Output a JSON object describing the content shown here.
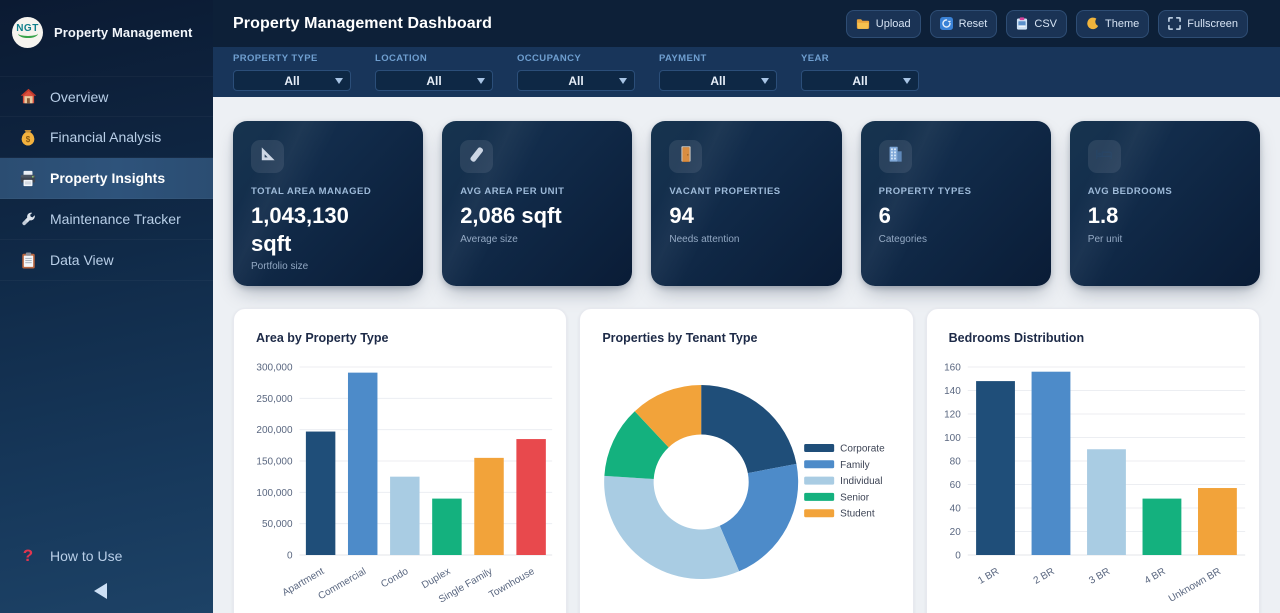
{
  "sidebar": {
    "brand": {
      "logo_text": "NGT",
      "title": "Property Management"
    },
    "items": [
      {
        "label": "Overview",
        "icon": "house-icon",
        "active": false
      },
      {
        "label": "Financial Analysis",
        "icon": "money-bag-icon",
        "active": false
      },
      {
        "label": "Property Insights",
        "icon": "printer-icon",
        "active": true
      },
      {
        "label": "Maintenance Tracker",
        "icon": "wrench-icon",
        "active": false
      },
      {
        "label": "Data View",
        "icon": "clipboard-icon",
        "active": false
      }
    ],
    "help": {
      "label": "How to Use",
      "icon": "question-mark-icon"
    },
    "collapse_icon": "collapse-left-icon"
  },
  "header": {
    "title": "Property Management Dashboard",
    "buttons": [
      {
        "label": "Upload",
        "icon": "folder-icon"
      },
      {
        "label": "Reset",
        "icon": "reset-icon"
      },
      {
        "label": "CSV",
        "icon": "clipboard-export-icon"
      },
      {
        "label": "Theme",
        "icon": "moon-icon"
      },
      {
        "label": "Fullscreen",
        "icon": "fullscreen-icon"
      }
    ]
  },
  "filters": [
    {
      "label": "PROPERTY TYPE",
      "value": "All"
    },
    {
      "label": "LOCATION",
      "value": "All"
    },
    {
      "label": "OCCUPANCY",
      "value": "All"
    },
    {
      "label": "PAYMENT",
      "value": "All"
    },
    {
      "label": "YEAR",
      "value": "All"
    }
  ],
  "kpis": [
    {
      "label": "TOTAL AREA MANAGED",
      "value": "1,043,130 sqft",
      "sub": "Portfolio size",
      "icon": "triangle-ruler-icon"
    },
    {
      "label": "AVG AREA PER UNIT",
      "value": "2,086 sqft",
      "sub": "Average size",
      "icon": "ruler-icon"
    },
    {
      "label": "VACANT PROPERTIES",
      "value": "94",
      "sub": "Needs attention",
      "icon": "door-icon"
    },
    {
      "label": "PROPERTY TYPES",
      "value": "6",
      "sub": "Categories",
      "icon": "building-icon"
    },
    {
      "label": "AVG BEDROOMS",
      "value": "1.8",
      "sub": "Per unit",
      "icon": "bed-icon"
    }
  ],
  "colors": {
    "palette": [
      "#1f4e79",
      "#4d8bc9",
      "#a9cce3",
      "#14b17e",
      "#f2a33a",
      "#e8494d"
    ],
    "sidebar_active": "#2e537b",
    "header_bg": "#0d2038",
    "filterbar_bg": "#18355a",
    "content_bg": "#edf0f4"
  },
  "chart_data": [
    {
      "type": "bar",
      "title": "Area by Property Type",
      "categories": [
        "Apartment",
        "Commercial",
        "Condo",
        "Duplex",
        "Single Family",
        "Townhouse"
      ],
      "values": [
        197000,
        291000,
        125000,
        90000,
        155000,
        185000
      ],
      "colors": [
        "#1f4e79",
        "#4d8bc9",
        "#a9cce3",
        "#14b17e",
        "#f2a33a",
        "#e8494d"
      ],
      "xlabel": "",
      "ylabel": "",
      "ylim": [
        0,
        300000
      ],
      "ytick_step": 50000,
      "grid": true,
      "legend": false
    },
    {
      "type": "pie",
      "title": "Properties by Tenant Type",
      "labels": [
        "Corporate",
        "Family",
        "Individual",
        "Senior",
        "Student"
      ],
      "values": [
        110,
        108,
        162,
        60,
        60
      ],
      "colors": [
        "#1f4e79",
        "#4d8bc9",
        "#a9cce3",
        "#14b17e",
        "#f2a33a"
      ],
      "hole": 0.5,
      "legend_position": "right"
    },
    {
      "type": "bar",
      "title": "Bedrooms Distribution",
      "categories": [
        "1 BR",
        "2 BR",
        "3 BR",
        "4 BR",
        "Unknown BR"
      ],
      "values": [
        148,
        156,
        90,
        48,
        57
      ],
      "colors": [
        "#1f4e79",
        "#4d8bc9",
        "#a9cce3",
        "#14b17e",
        "#f2a33a"
      ],
      "xlabel": "",
      "ylabel": "",
      "ylim": [
        0,
        160
      ],
      "ytick_step": 20,
      "grid": true,
      "legend": false
    }
  ]
}
